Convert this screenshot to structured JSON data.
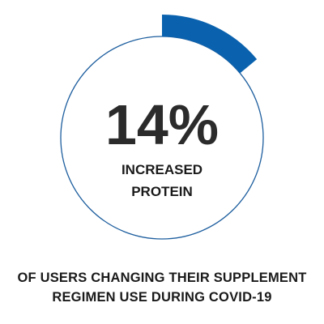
{
  "chart_data": {
    "type": "donut-stat",
    "value_percent": 14,
    "value_label": "14%",
    "label_lines": [
      "INCREASED",
      "PROTEIN"
    ],
    "caption_lines": [
      "OF USERS CHANGING THEIR SUPPLEMENT",
      "REGIMEN USE DURING COVID-19"
    ],
    "arc_start_position": "top (12 o'clock)",
    "arc_direction": "clockwise"
  },
  "colors": {
    "arc_fill": "#0a62ae",
    "ring_outline": "#1d5e9e",
    "value_text": "#2b2b2b",
    "label_text": "#1a1a1a"
  }
}
